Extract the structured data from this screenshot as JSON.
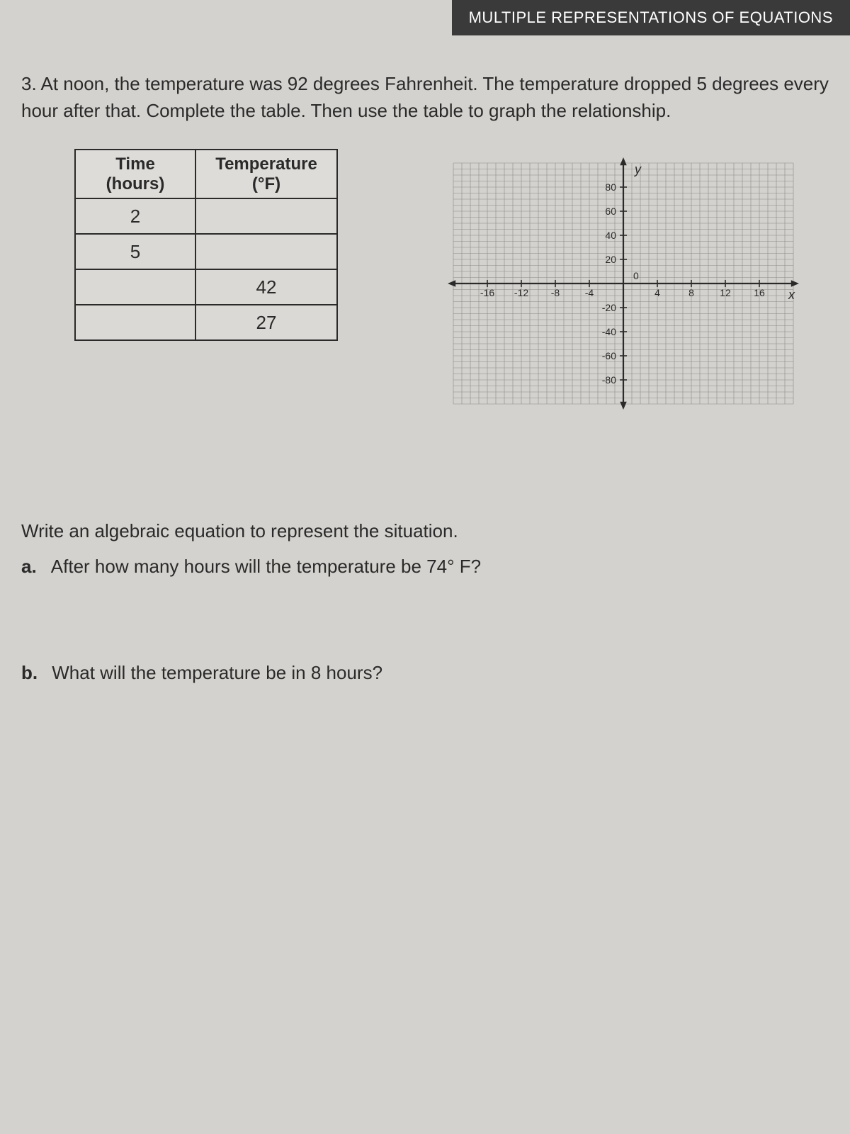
{
  "header": {
    "title": "MULTIPLE REPRESENTATIONS OF EQUATIONS"
  },
  "question": {
    "number": "3.",
    "text": "At noon, the temperature was 92 degrees Fahrenheit. The temperature dropped 5 degrees every hour after that. Complete the table. Then use the table to graph the relationship."
  },
  "table": {
    "col1_header_line1": "Time",
    "col1_header_line2": "(hours)",
    "col2_header_line1": "Temperature",
    "col2_header_line2": "(°F)",
    "rows": [
      {
        "time": "2",
        "temp": ""
      },
      {
        "time": "5",
        "temp": ""
      },
      {
        "time": "",
        "temp": "42"
      },
      {
        "time": "",
        "temp": "27"
      }
    ]
  },
  "graph": {
    "y_label": "y",
    "x_label": "x",
    "origin_label": "0",
    "x_ticks": [
      -16,
      -12,
      -8,
      -4,
      4,
      8,
      12,
      16
    ],
    "y_ticks_pos": [
      20,
      40,
      60,
      80
    ],
    "y_ticks_neg": [
      -20,
      -40,
      -60,
      -80
    ],
    "xlim": [
      -20,
      20
    ],
    "ylim": [
      -100,
      100
    ],
    "minor_grid_step_x": 1,
    "minor_grid_step_y": 5,
    "grid_color": "#8a8986",
    "axis_color": "#2a2a2a",
    "text_color": "#2a2a2a",
    "background": "#d4d2ce",
    "tick_fontsize": 14
  },
  "equation_prompt": "Write an algebraic equation to represent the situation.",
  "part_a": {
    "label": "a.",
    "text": "After how many hours will the temperature be 74° F?"
  },
  "part_b": {
    "label": "b.",
    "text": "What will the temperature be in 8 hours?"
  }
}
